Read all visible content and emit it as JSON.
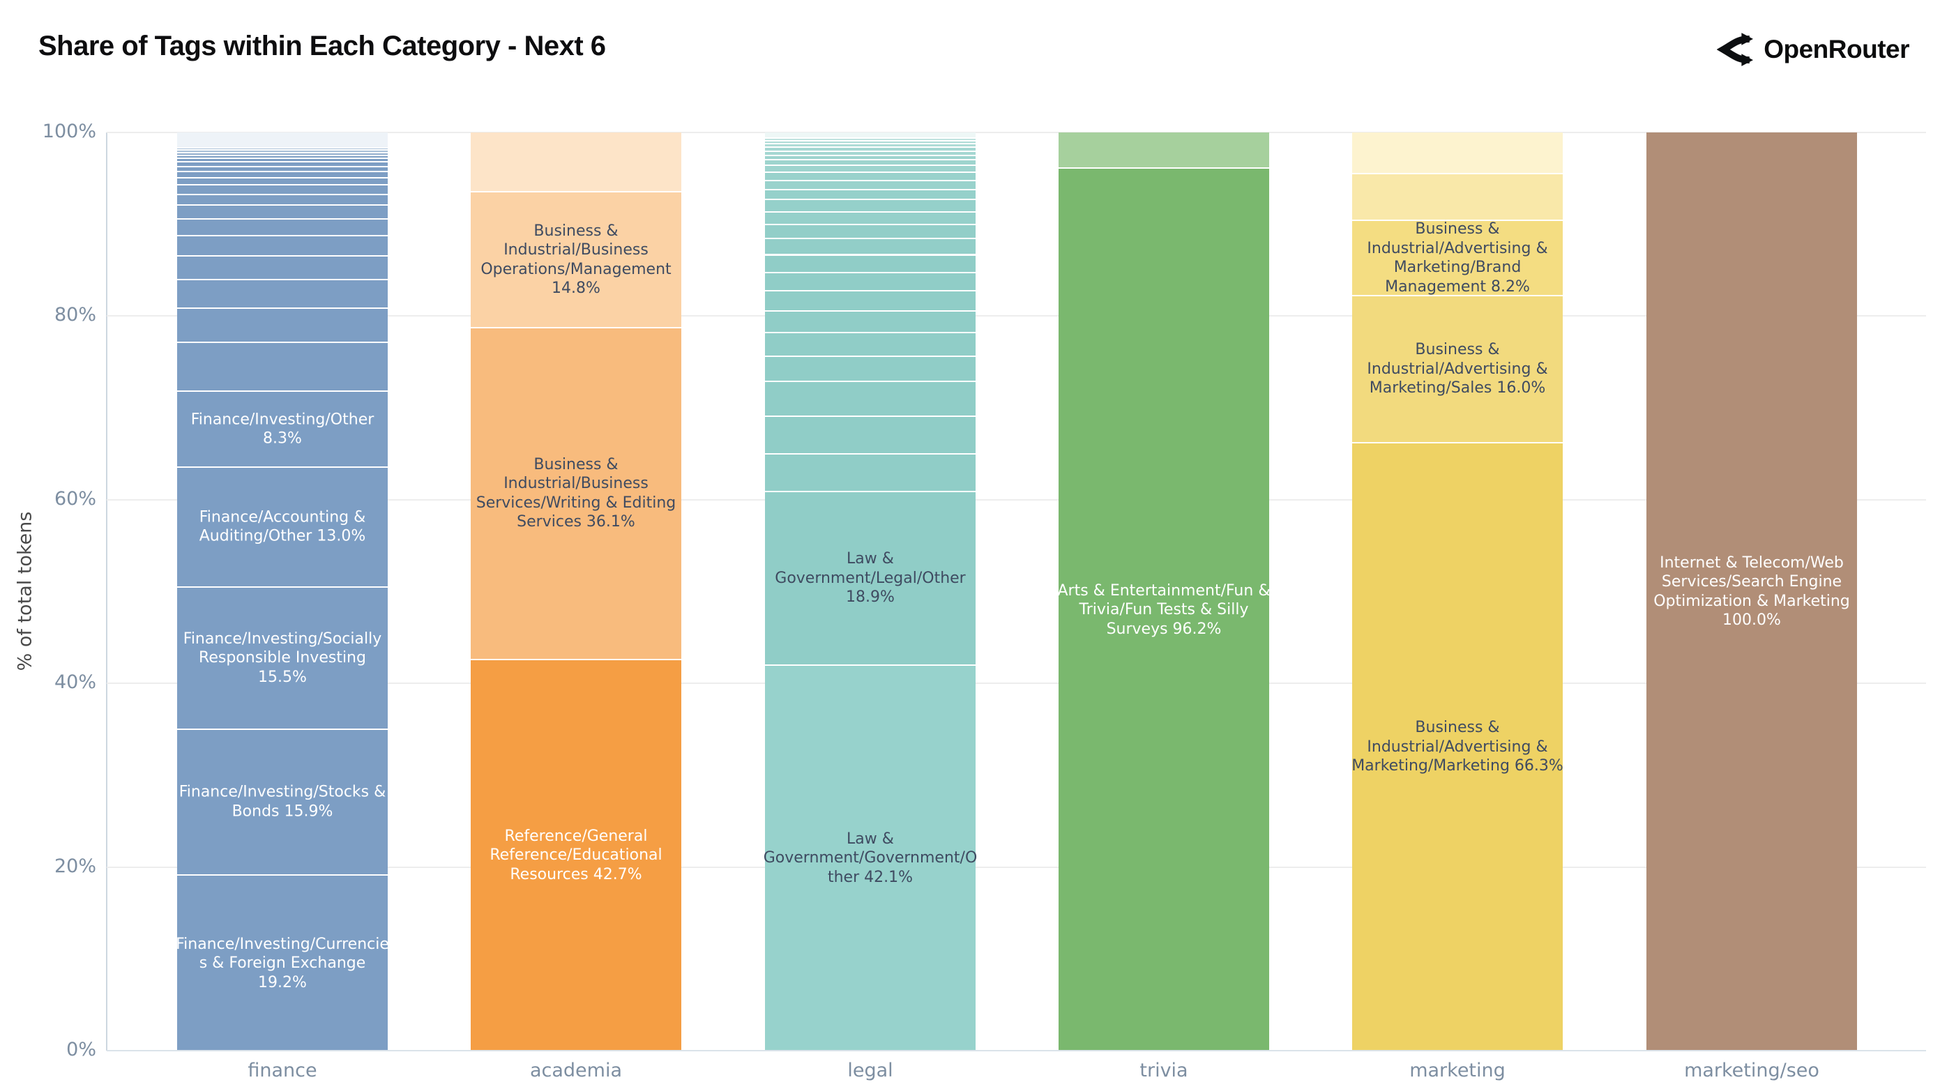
{
  "header": {
    "title": "Share of Tags within Each Category - Next 6",
    "brand": {
      "name": "OpenRouter"
    }
  },
  "chart_data": {
    "type": "bar",
    "subtype": "stacked-100-percent",
    "title": "Share of Tags within Each Category - Next 6",
    "xlabel": "",
    "ylabel": "% of total tokens",
    "ylim": [
      0,
      100
    ],
    "grid": true,
    "legend": "none",
    "yticks": [
      {
        "label": "100%",
        "value": 100
      },
      {
        "label": "80%",
        "value": 80
      },
      {
        "label": "60%",
        "value": 60
      },
      {
        "label": "40%",
        "value": 40
      },
      {
        "label": "20%",
        "value": 20
      },
      {
        "label": "0%",
        "value": 0
      }
    ],
    "categories": [
      "finance",
      "academia",
      "legal",
      "trivia",
      "marketing",
      "marketing/seo"
    ],
    "bars": [
      {
        "category": "finance",
        "segments": [
          {
            "value": 1.6,
            "color": "#eef3f8",
            "label": null
          },
          {
            "value": 0.25,
            "color": "#a9c0d8",
            "label": null
          },
          {
            "value": 0.25,
            "color": "#a9c0d8",
            "label": null
          },
          {
            "value": 0.3,
            "color": "#93aecd",
            "label": null
          },
          {
            "value": 0.35,
            "color": "#7d9ec4",
            "label": null
          },
          {
            "value": 0.4,
            "color": "#7d9ec4",
            "label": null
          },
          {
            "value": 0.5,
            "color": "#7d9ec4",
            "label": null
          },
          {
            "value": 0.55,
            "color": "#7d9ec4",
            "label": null
          },
          {
            "value": 0.65,
            "color": "#7d9ec4",
            "label": null
          },
          {
            "value": 0.8,
            "color": "#7d9ec4",
            "label": null
          },
          {
            "value": 1.0,
            "color": "#7d9ec4",
            "label": null
          },
          {
            "value": 1.2,
            "color": "#7d9ec4",
            "label": null
          },
          {
            "value": 1.5,
            "color": "#7d9ec4",
            "label": null
          },
          {
            "value": 1.8,
            "color": "#7d9ec4",
            "label": null
          },
          {
            "value": 2.2,
            "color": "#7d9ec4",
            "label": null
          },
          {
            "value": 2.6,
            "color": "#7d9ec4",
            "label": null
          },
          {
            "value": 3.1,
            "color": "#7d9ec4",
            "label": null
          },
          {
            "value": 3.7,
            "color": "#7d9ec4",
            "label": null
          },
          {
            "value": 5.35,
            "color": "#7d9ec4",
            "label": null
          },
          {
            "value": 8.3,
            "color": "#7d9ec4",
            "label": "Finance/Investing/Other 8.3%",
            "label_color": "#ffffff"
          },
          {
            "value": 13.0,
            "color": "#7d9ec4",
            "label": "Finance/Accounting & Auditing/Other 13.0%",
            "label_color": "#ffffff"
          },
          {
            "value": 15.5,
            "color": "#7d9ec4",
            "label": "Finance/Investing/Socially Responsible Investing 15.5%",
            "label_color": "#ffffff"
          },
          {
            "value": 15.9,
            "color": "#7d9ec4",
            "label": "Finance/Investing/Stocks & Bonds 15.9%",
            "label_color": "#ffffff"
          },
          {
            "value": 19.2,
            "color": "#7d9ec4",
            "label": "Finance/Investing/Currencies & Foreign Exchange 19.2%",
            "label_color": "#ffffff"
          }
        ]
      },
      {
        "category": "academia",
        "segments": [
          {
            "value": 6.4,
            "color": "#fde4c8",
            "label": null
          },
          {
            "value": 14.8,
            "color": "#fbd2a5",
            "label": "Business & Industrial/Business Operations/Management 14.8%",
            "label_color": "#3f4b61"
          },
          {
            "value": 36.1,
            "color": "#f8bb7d",
            "label": "Business & Industrial/Business Services/Writing & Editing Services 36.1%",
            "label_color": "#3f4b61"
          },
          {
            "value": 42.7,
            "color": "#f59e44",
            "label": "Reference/General Reference/Educational Resources 42.7%",
            "label_color": "#ffffff"
          }
        ]
      },
      {
        "category": "legal",
        "segments": [
          {
            "value": 0.5,
            "color": "#eef7f6",
            "label": null
          },
          {
            "value": 0.3,
            "color": "#c1e3df",
            "label": null
          },
          {
            "value": 0.35,
            "color": "#aedbd6",
            "label": null
          },
          {
            "value": 0.4,
            "color": "#aedbd6",
            "label": null
          },
          {
            "value": 0.4,
            "color": "#a5d7d2",
            "label": null
          },
          {
            "value": 0.45,
            "color": "#a5d7d2",
            "label": null
          },
          {
            "value": 0.5,
            "color": "#9ed4ce",
            "label": null
          },
          {
            "value": 0.6,
            "color": "#9ed4ce",
            "label": null
          },
          {
            "value": 0.75,
            "color": "#9ed4ce",
            "label": null
          },
          {
            "value": 0.9,
            "color": "#99d2cc",
            "label": null
          },
          {
            "value": 1.0,
            "color": "#99d2cc",
            "label": null
          },
          {
            "value": 1.1,
            "color": "#95d0ca",
            "label": null
          },
          {
            "value": 1.3,
            "color": "#95d0ca",
            "label": null
          },
          {
            "value": 1.4,
            "color": "#95d0ca",
            "label": null
          },
          {
            "value": 1.5,
            "color": "#92cec8",
            "label": null
          },
          {
            "value": 1.8,
            "color": "#92cec8",
            "label": null
          },
          {
            "value": 1.9,
            "color": "#90cdc7",
            "label": null
          },
          {
            "value": 2.0,
            "color": "#90cdc7",
            "label": null
          },
          {
            "value": 2.2,
            "color": "#90cdc7",
            "label": null
          },
          {
            "value": 2.35,
            "color": "#90cdc7",
            "label": null
          },
          {
            "value": 2.6,
            "color": "#90cdc7",
            "label": null
          },
          {
            "value": 2.7,
            "color": "#90cdc7",
            "label": null
          },
          {
            "value": 3.8,
            "color": "#90cdc7",
            "label": null
          },
          {
            "value": 4.1,
            "color": "#90cdc7",
            "label": null
          },
          {
            "value": 4.1,
            "color": "#90cdc7",
            "label": null
          },
          {
            "value": 18.9,
            "color": "#90cdc7",
            "label": "Law & Government/Legal/Other 18.9%",
            "label_color": "#3f4b61"
          },
          {
            "value": 42.1,
            "color": "#97d2cc",
            "label": "Law & Government/Government/Other 42.1%",
            "label_color": "#3f4b61"
          }
        ]
      },
      {
        "category": "trivia",
        "segments": [
          {
            "value": 3.8,
            "color": "#a6d09d",
            "label": null
          },
          {
            "value": 96.2,
            "color": "#7ab86e",
            "label": "Arts & Entertainment/Fun & Trivia/Fun Tests & Silly Surveys 96.2%",
            "label_color": "#ffffff"
          }
        ]
      },
      {
        "category": "marketing",
        "segments": [
          {
            "value": 4.4,
            "color": "#fdf3cf",
            "label": null
          },
          {
            "value": 5.1,
            "color": "#f9e8a9",
            "label": null
          },
          {
            "value": 8.2,
            "color": "#f4dd82",
            "label": "Business & Industrial/Advertising & Marketing/Brand Management 8.2%",
            "label_color": "#3f4b61"
          },
          {
            "value": 16.0,
            "color": "#f2da7e",
            "label": "Business & Industrial/Advertising & Marketing/Sales 16.0%",
            "label_color": "#3f4b61"
          },
          {
            "value": 66.3,
            "color": "#eed264",
            "label": "Business & Industrial/Advertising & Marketing/Marketing 66.3%",
            "label_color": "#3f4b61"
          }
        ]
      },
      {
        "category": "marketing/seo",
        "segments": [
          {
            "value": 100.0,
            "color": "#b18e77",
            "label": "Internet & Telecom/Web Services/Search Engine Optimization & Marketing 100.0%",
            "label_color": "#ffffff"
          }
        ]
      }
    ]
  }
}
